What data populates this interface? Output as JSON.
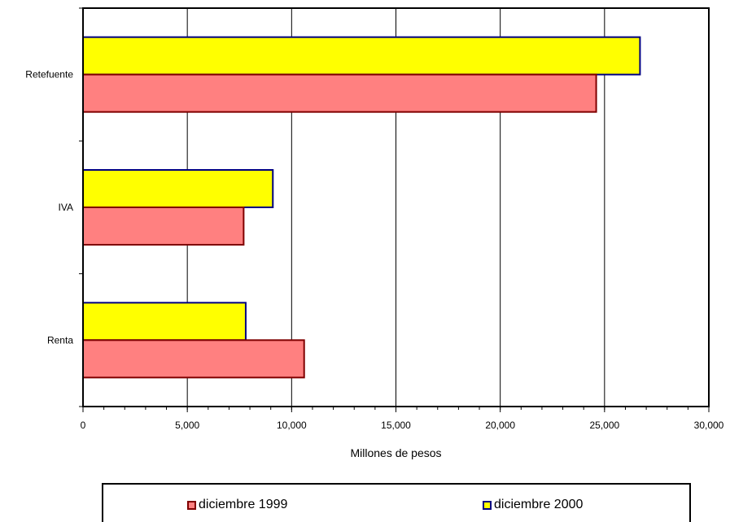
{
  "chart_data": {
    "type": "bar",
    "orientation": "horizontal",
    "categories": [
      "Retefuente",
      "IVA",
      "Renta"
    ],
    "series": [
      {
        "name": "diciembre 2000",
        "values": [
          26700,
          9100,
          7800
        ],
        "color": "#ffff00",
        "stroke": "#000080"
      },
      {
        "name": "diciembre 1999",
        "values": [
          24600,
          7700,
          10600
        ],
        "color": "#ff8080",
        "stroke": "#800000"
      }
    ],
    "xlabel": "Millones de pesos",
    "xlim": [
      0,
      30000
    ],
    "xticks": [
      0,
      5000,
      10000,
      15000,
      20000,
      25000,
      30000
    ],
    "xtick_labels": [
      "0",
      "5,000",
      "10,000",
      "15,000",
      "20,000",
      "25,000",
      "30,000"
    ],
    "grid": "vertical",
    "legend_position": "bottom",
    "legend": [
      {
        "label": "diciembre 1999",
        "color": "#ff8080",
        "stroke": "#800000"
      },
      {
        "label": "diciembre 2000",
        "color": "#ffff00",
        "stroke": "#000080"
      }
    ]
  }
}
